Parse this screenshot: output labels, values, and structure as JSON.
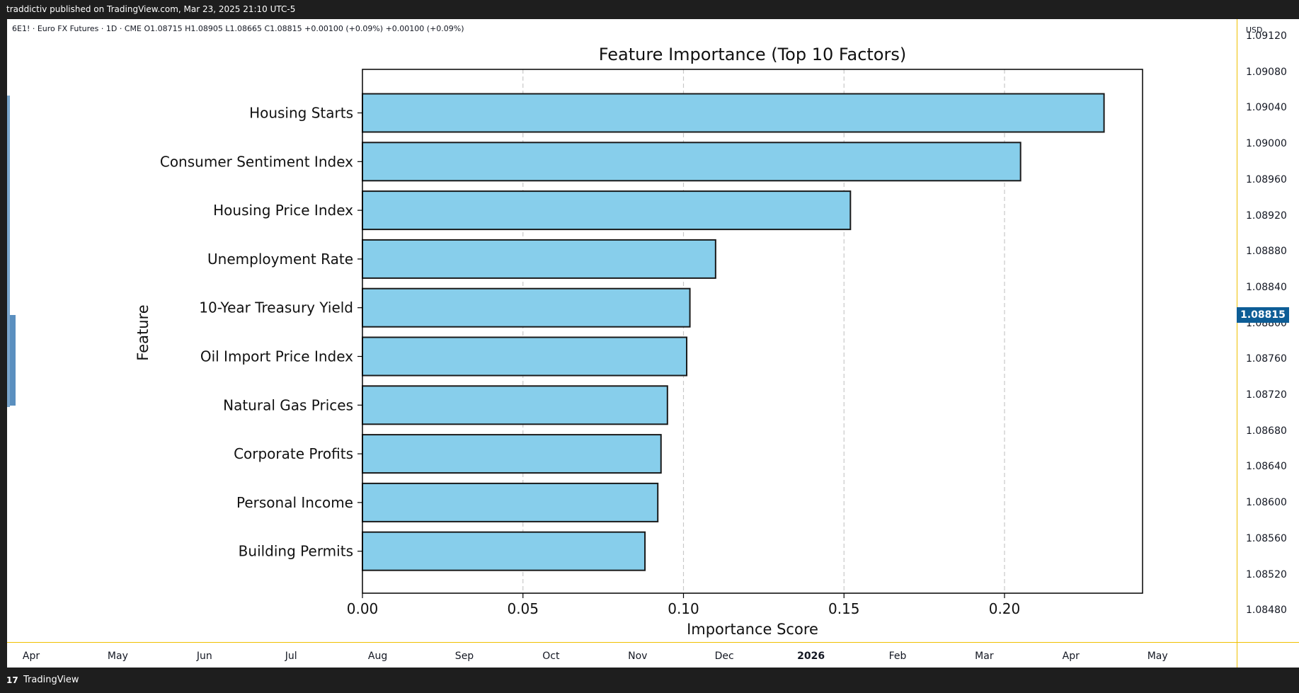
{
  "header": {
    "published": "traddictiv published on TradingView.com, Mar 23, 2025 21:10 UTC-5"
  },
  "symbol_line": "6E1! · Euro FX Futures · 1D · CME  O1.08715  H1.08905  L1.08665  C1.08815  +0.00100 (+0.09%)  +0.00100 (+0.09%)",
  "price_axis": {
    "currency": "USD",
    "ticks": [
      "1.09120",
      "1.09080",
      "1.09040",
      "1.09000",
      "1.08960",
      "1.08920",
      "1.08880",
      "1.08840",
      "1.08800",
      "1.08760",
      "1.08720",
      "1.08680",
      "1.08640",
      "1.08600",
      "1.08560",
      "1.08520",
      "1.08480"
    ],
    "current_price": "1.08815",
    "current_price_color": "#0d5d96"
  },
  "time_axis": {
    "months": [
      "Apr",
      "May",
      "Jun",
      "Jul",
      "Aug",
      "Sep",
      "Oct",
      "Nov",
      "Dec",
      "2026",
      "Feb",
      "Mar",
      "Apr",
      "May"
    ]
  },
  "footer": {
    "brand": "TradingView"
  },
  "chart_data": {
    "type": "bar",
    "orientation": "horizontal",
    "title": "Feature Importance (Top 10 Factors)",
    "xlabel": "Importance Score",
    "ylabel": "Feature",
    "categories": [
      "Housing Starts",
      "Consumer Sentiment Index",
      "Housing Price Index",
      "Unemployment Rate",
      "10-Year Treasury Yield",
      "Oil Import Price Index",
      "Natural Gas Prices",
      "Corporate Profits",
      "Personal Income",
      "Building Permits"
    ],
    "values": [
      0.231,
      0.205,
      0.152,
      0.11,
      0.102,
      0.101,
      0.095,
      0.093,
      0.092,
      0.088
    ],
    "xlim": [
      0,
      0.243
    ],
    "xticks": [
      "0.00",
      "0.05",
      "0.10",
      "0.15",
      "0.20"
    ],
    "xgrid": true,
    "bar_color": "#87ceeb",
    "edge_color": "#1a1a1a"
  }
}
